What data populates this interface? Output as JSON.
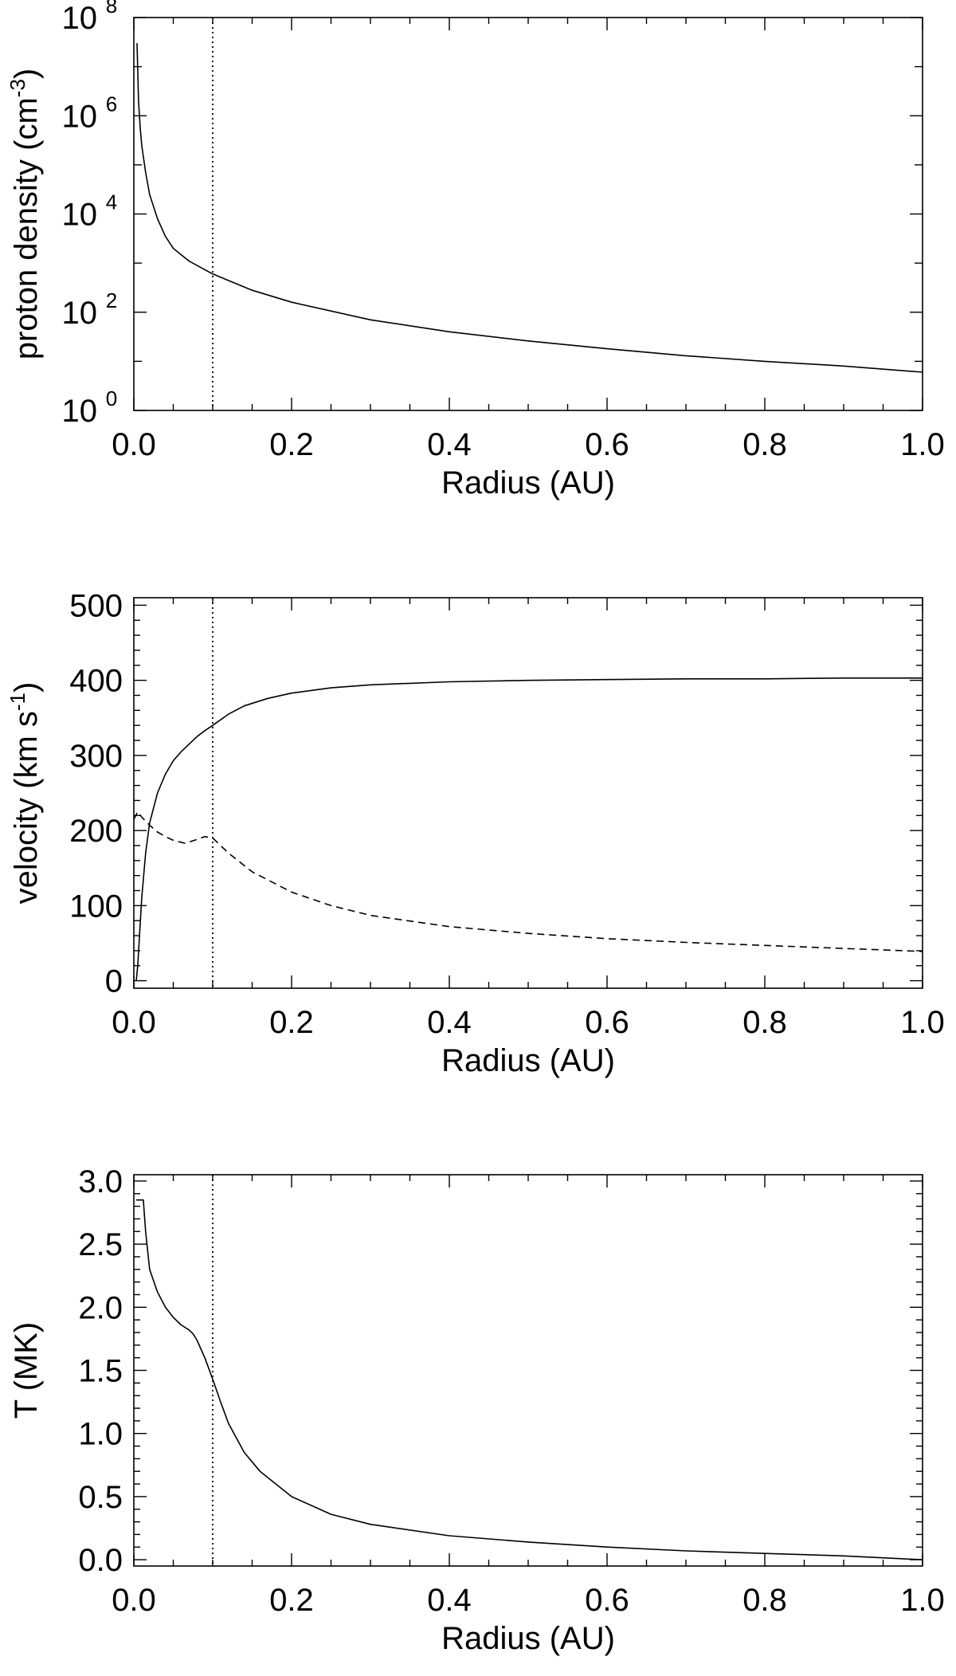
{
  "chart_data": [
    {
      "type": "line",
      "title": "",
      "xlabel": "Radius (AU)",
      "ylabel": {
        "prefix": "proton density (cm",
        "sup": "-3",
        "suffix": ")"
      },
      "xlim": [
        0.0,
        1.0
      ],
      "ylim": [
        1,
        100000000
      ],
      "yscale": "log",
      "x_ticks": [
        "0.0",
        "0.2",
        "0.4",
        "0.6",
        "0.8",
        "1.0"
      ],
      "y_ticks": [
        {
          "value": 1,
          "base": "10",
          "exp": "0"
        },
        {
          "value": 100,
          "base": "10",
          "exp": "2"
        },
        {
          "value": 10000,
          "base": "10",
          "exp": "4"
        },
        {
          "value": 1000000,
          "base": "10",
          "exp": "6"
        },
        {
          "value": 100000000,
          "base": "10",
          "exp": "8"
        }
      ],
      "vline": {
        "x": 0.1,
        "style": "dotted"
      },
      "series": [
        {
          "style": "solid",
          "x": [
            0.004,
            0.006,
            0.008,
            0.01,
            0.015,
            0.02,
            0.03,
            0.04,
            0.05,
            0.07,
            0.1,
            0.15,
            0.2,
            0.3,
            0.4,
            0.5,
            0.6,
            0.7,
            0.8,
            0.9,
            1.0
          ],
          "y": [
            30000000,
            2000000,
            600000,
            250000,
            70000,
            25000,
            8000,
            3500,
            2000,
            1100,
            600,
            280,
            160,
            70,
            40,
            26,
            18,
            13,
            10,
            8,
            6
          ]
        }
      ]
    },
    {
      "type": "line",
      "title": "",
      "xlabel": "Radius (AU)",
      "ylabel": {
        "prefix": "velocity (km s",
        "sup": "-1",
        "suffix": ")"
      },
      "xlim": [
        0.0,
        1.0
      ],
      "ylim": [
        -10,
        510
      ],
      "yscale": "linear",
      "x_ticks": [
        "0.0",
        "0.2",
        "0.4",
        "0.6",
        "0.8",
        "1.0"
      ],
      "y_ticks": [
        "0",
        "100",
        "200",
        "300",
        "400",
        "500"
      ],
      "y_tick_values": [
        0,
        100,
        200,
        300,
        400,
        500
      ],
      "vline": {
        "x": 0.1,
        "style": "dotted"
      },
      "series": [
        {
          "style": "solid",
          "x": [
            0.003,
            0.005,
            0.01,
            0.015,
            0.02,
            0.03,
            0.04,
            0.05,
            0.06,
            0.07,
            0.08,
            0.09,
            0.1,
            0.12,
            0.14,
            0.17,
            0.2,
            0.25,
            0.3,
            0.4,
            0.5,
            0.6,
            0.7,
            0.8,
            0.9,
            1.0
          ],
          "y": [
            0,
            20,
            110,
            170,
            210,
            250,
            275,
            293,
            305,
            315,
            325,
            333,
            340,
            355,
            366,
            376,
            383,
            390,
            394,
            398,
            400,
            401,
            402,
            402,
            403,
            403
          ]
        },
        {
          "style": "dashed",
          "x": [
            0.0,
            0.005,
            0.01,
            0.02,
            0.03,
            0.04,
            0.05,
            0.065,
            0.08,
            0.09,
            0.1,
            0.12,
            0.15,
            0.2,
            0.25,
            0.3,
            0.4,
            0.5,
            0.6,
            0.7,
            0.8,
            0.9,
            1.0
          ],
          "y": [
            215,
            225,
            218,
            207,
            198,
            192,
            187,
            183,
            188,
            192,
            190,
            170,
            145,
            118,
            100,
            87,
            72,
            63,
            56,
            51,
            47,
            43,
            39
          ]
        }
      ]
    },
    {
      "type": "line",
      "title": "",
      "xlabel": "Radius (AU)",
      "ylabel": {
        "prefix": "T (MK)",
        "sup": "",
        "suffix": ""
      },
      "xlim": [
        0.0,
        1.0
      ],
      "ylim": [
        -0.05,
        3.05
      ],
      "yscale": "linear",
      "x_ticks": [
        "0.0",
        "0.2",
        "0.4",
        "0.6",
        "0.8",
        "1.0"
      ],
      "y_ticks": [
        "0.0",
        "0.5",
        "1.0",
        "1.5",
        "2.0",
        "2.5",
        "3.0"
      ],
      "y_tick_values": [
        0.0,
        0.5,
        1.0,
        1.5,
        2.0,
        2.5,
        3.0
      ],
      "vline": {
        "x": 0.1,
        "style": "dotted"
      },
      "series": [
        {
          "style": "solid",
          "x": [
            0.003,
            0.012,
            0.015,
            0.02,
            0.03,
            0.04,
            0.05,
            0.06,
            0.07,
            0.075,
            0.08,
            0.09,
            0.1,
            0.11,
            0.12,
            0.14,
            0.16,
            0.2,
            0.25,
            0.3,
            0.4,
            0.5,
            0.6,
            0.7,
            0.8,
            0.9,
            1.0
          ],
          "y": [
            2.85,
            2.85,
            2.6,
            2.3,
            2.12,
            2.0,
            1.92,
            1.86,
            1.82,
            1.79,
            1.74,
            1.6,
            1.43,
            1.25,
            1.08,
            0.85,
            0.7,
            0.5,
            0.36,
            0.28,
            0.19,
            0.14,
            0.1,
            0.07,
            0.05,
            0.03,
            0.0
          ]
        }
      ]
    }
  ]
}
